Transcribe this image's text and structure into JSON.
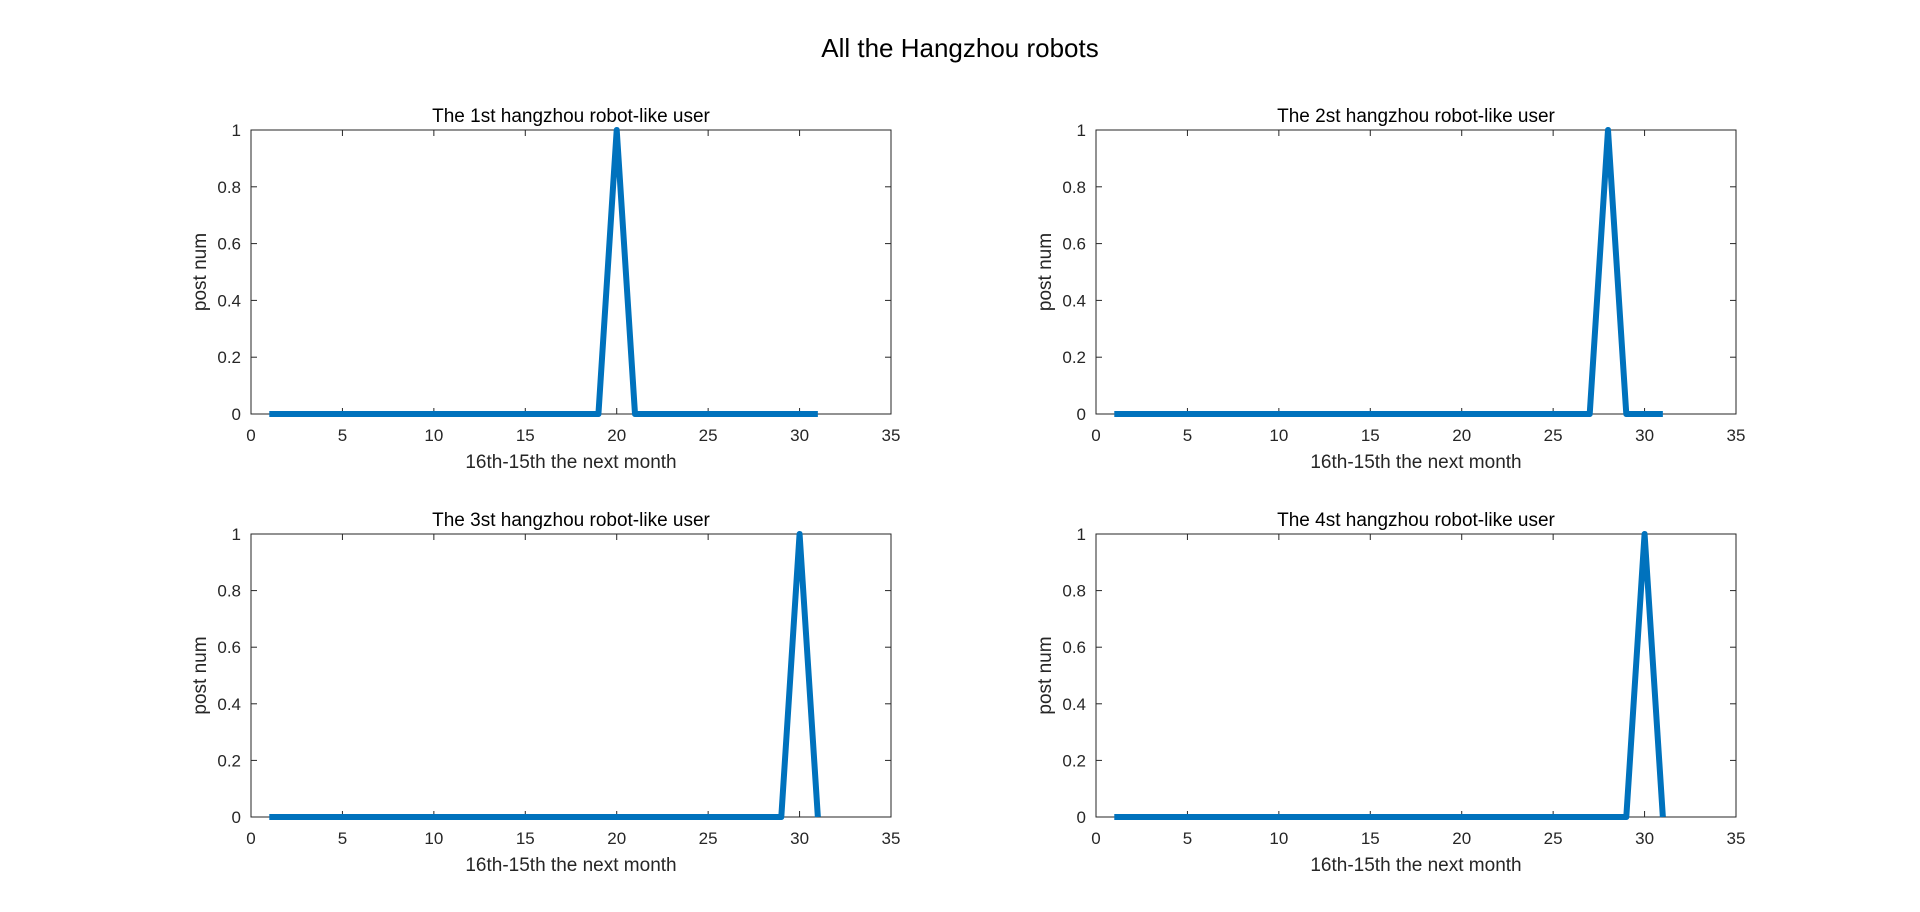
{
  "figure": {
    "suptitle": "All the Hangzhou robots",
    "line_color": "#0072BD",
    "axis_color": "#262626"
  },
  "chart_data": [
    {
      "type": "line",
      "title": "The 1st hangzhou robot-like user",
      "xlabel": "16th-15th the next month",
      "ylabel": "post num",
      "xlim": [
        0,
        35
      ],
      "ylim": [
        0,
        1
      ],
      "xticks": [
        "0",
        "5",
        "10",
        "15",
        "20",
        "25",
        "30",
        "35"
      ],
      "yticks": [
        "0",
        "0.2",
        "0.4",
        "0.6",
        "0.8",
        "1"
      ],
      "grid": false,
      "x": [
        1,
        2,
        3,
        4,
        5,
        6,
        7,
        8,
        9,
        10,
        11,
        12,
        13,
        14,
        15,
        16,
        17,
        18,
        19,
        20,
        21,
        22,
        23,
        24,
        25,
        26,
        27,
        28,
        29,
        30,
        31
      ],
      "y": [
        0,
        0,
        0,
        0,
        0,
        0,
        0,
        0,
        0,
        0,
        0,
        0,
        0,
        0,
        0,
        0,
        0,
        0,
        0,
        1,
        0,
        0,
        0,
        0,
        0,
        0,
        0,
        0,
        0,
        0,
        0
      ]
    },
    {
      "type": "line",
      "title": "The 2st hangzhou robot-like user",
      "xlabel": "16th-15th the next month",
      "ylabel": "post num",
      "xlim": [
        0,
        35
      ],
      "ylim": [
        0,
        1
      ],
      "xticks": [
        "0",
        "5",
        "10",
        "15",
        "20",
        "25",
        "30",
        "35"
      ],
      "yticks": [
        "0",
        "0.2",
        "0.4",
        "0.6",
        "0.8",
        "1"
      ],
      "grid": false,
      "x": [
        1,
        2,
        3,
        4,
        5,
        6,
        7,
        8,
        9,
        10,
        11,
        12,
        13,
        14,
        15,
        16,
        17,
        18,
        19,
        20,
        21,
        22,
        23,
        24,
        25,
        26,
        27,
        28,
        29,
        30,
        31
      ],
      "y": [
        0,
        0,
        0,
        0,
        0,
        0,
        0,
        0,
        0,
        0,
        0,
        0,
        0,
        0,
        0,
        0,
        0,
        0,
        0,
        0,
        0,
        0,
        0,
        0,
        0,
        0,
        0,
        1,
        0,
        0,
        0
      ]
    },
    {
      "type": "line",
      "title": "The 3st hangzhou robot-like user",
      "xlabel": "16th-15th the next month",
      "ylabel": "post num",
      "xlim": [
        0,
        35
      ],
      "ylim": [
        0,
        1
      ],
      "xticks": [
        "0",
        "5",
        "10",
        "15",
        "20",
        "25",
        "30",
        "35"
      ],
      "yticks": [
        "0",
        "0.2",
        "0.4",
        "0.6",
        "0.8",
        "1"
      ],
      "grid": false,
      "x": [
        1,
        2,
        3,
        4,
        5,
        6,
        7,
        8,
        9,
        10,
        11,
        12,
        13,
        14,
        15,
        16,
        17,
        18,
        19,
        20,
        21,
        22,
        23,
        24,
        25,
        26,
        27,
        28,
        29,
        30,
        31
      ],
      "y": [
        0,
        0,
        0,
        0,
        0,
        0,
        0,
        0,
        0,
        0,
        0,
        0,
        0,
        0,
        0,
        0,
        0,
        0,
        0,
        0,
        0,
        0,
        0,
        0,
        0,
        0,
        0,
        0,
        0,
        1,
        0
      ]
    },
    {
      "type": "line",
      "title": "The 4st hangzhou robot-like user",
      "xlabel": "16th-15th the next month",
      "ylabel": "post num",
      "xlim": [
        0,
        35
      ],
      "ylim": [
        0,
        1
      ],
      "xticks": [
        "0",
        "5",
        "10",
        "15",
        "20",
        "25",
        "30",
        "35"
      ],
      "yticks": [
        "0",
        "0.2",
        "0.4",
        "0.6",
        "0.8",
        "1"
      ],
      "grid": false,
      "x": [
        1,
        2,
        3,
        4,
        5,
        6,
        7,
        8,
        9,
        10,
        11,
        12,
        13,
        14,
        15,
        16,
        17,
        18,
        19,
        20,
        21,
        22,
        23,
        24,
        25,
        26,
        27,
        28,
        29,
        30,
        31
      ],
      "y": [
        0,
        0,
        0,
        0,
        0,
        0,
        0,
        0,
        0,
        0,
        0,
        0,
        0,
        0,
        0,
        0,
        0,
        0,
        0,
        0,
        0,
        0,
        0,
        0,
        0,
        0,
        0,
        0,
        0,
        1,
        0
      ]
    }
  ]
}
